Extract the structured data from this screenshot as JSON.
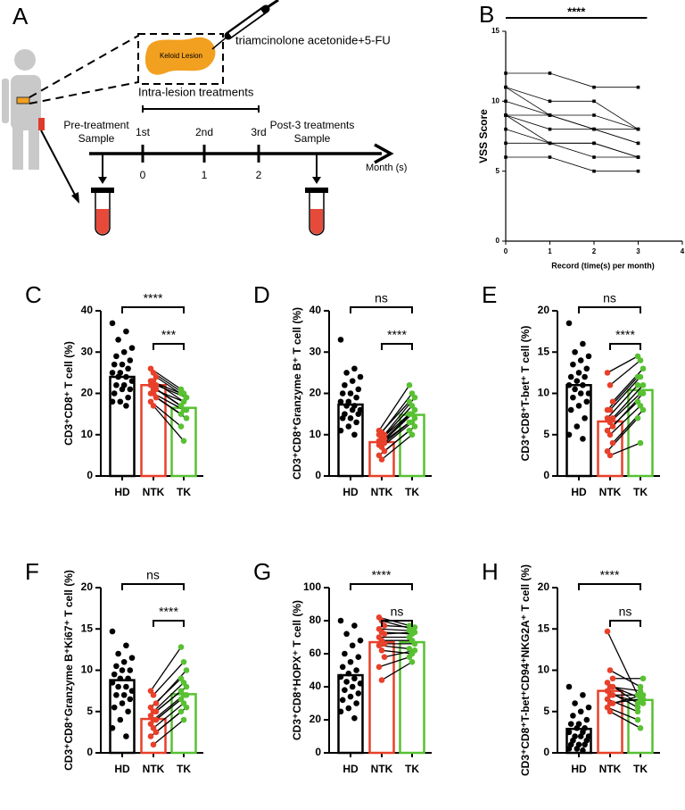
{
  "diagram": {
    "panel": "A",
    "drug": "triamcinolone acetonide+5-FU",
    "lesion": "Keloid Lesion",
    "treatments": "Intra-lesion treatments",
    "pre": [
      "Pre-treatment",
      "Sample"
    ],
    "post": [
      "Post-3 treatments",
      "Sample"
    ],
    "doses": [
      "1st",
      "2nd",
      "3rd"
    ],
    "months": [
      "0",
      "1",
      "2"
    ],
    "axis": "Month (s)"
  },
  "chart_data": [
    {
      "type": "line",
      "panel": "B",
      "xlabel": "Record (time(s) per month)",
      "ylabel": "VSS Score",
      "annotation": "****",
      "x": [
        0,
        1,
        2,
        3
      ],
      "xlim": [
        0,
        4
      ],
      "xticks": [
        0,
        1,
        2,
        3,
        4
      ],
      "ylim": [
        0,
        15
      ],
      "yticks": [
        0,
        5,
        10,
        15
      ],
      "color": "#000000",
      "series": [
        {
          "values": [
            12,
            12,
            11,
            11
          ]
        },
        {
          "values": [
            11,
            10,
            10,
            8
          ]
        },
        {
          "values": [
            10,
            9,
            8,
            7
          ]
        },
        {
          "values": [
            11,
            9,
            8,
            8
          ]
        },
        {
          "values": [
            9,
            9,
            9,
            8
          ]
        },
        {
          "values": [
            9,
            8,
            8,
            7
          ]
        },
        {
          "values": [
            8,
            7,
            7,
            6
          ]
        },
        {
          "values": [
            9,
            7,
            7,
            6
          ]
        },
        {
          "values": [
            7,
            7,
            6,
            6
          ]
        },
        {
          "values": [
            6,
            6,
            5,
            5
          ]
        }
      ]
    },
    {
      "type": "bar-scatter",
      "panel": "C",
      "ylabel": "CD3⁺CD8⁺ T cell (%)",
      "categories": [
        "HD",
        "NTK",
        "TK"
      ],
      "colors": [
        "#000000",
        "#e8402a",
        "#58c132"
      ],
      "values": [
        24,
        22,
        16.5
      ],
      "ylim": [
        0,
        40
      ],
      "yticks": [
        0,
        10,
        20,
        30,
        40
      ],
      "points": [
        [
          37,
          35,
          33,
          31,
          30,
          29,
          28,
          27,
          27,
          26,
          25,
          25,
          24,
          24,
          23,
          22,
          22,
          21,
          21,
          20,
          19,
          18,
          18,
          17
        ],
        [
          26,
          25,
          24,
          23,
          23,
          22,
          22,
          21,
          21,
          20,
          20,
          19,
          18,
          17
        ],
        [
          21,
          20,
          19,
          20,
          18,
          19,
          17,
          18,
          16,
          15,
          16,
          14,
          12,
          8.5
        ]
      ],
      "annotations": [
        {
          "label": "****",
          "between": [
            "HD",
            "TK"
          ]
        },
        {
          "label": "***",
          "between": [
            "NTK",
            "TK"
          ]
        }
      ]
    },
    {
      "type": "bar-scatter",
      "panel": "D",
      "ylabel": "CD3⁺CD8⁺Granzyme B⁺ T cell (%)",
      "categories": [
        "HD",
        "NTK",
        "TK"
      ],
      "colors": [
        "#000000",
        "#e8402a",
        "#58c132"
      ],
      "values": [
        17.3,
        8.2,
        14.8
      ],
      "ylim": [
        0,
        40
      ],
      "yticks": [
        0,
        10,
        20,
        30,
        40
      ],
      "points": [
        [
          33,
          26,
          25,
          24,
          23,
          22,
          21,
          20,
          20,
          19,
          18,
          18,
          17,
          17,
          16,
          16,
          15,
          15,
          14,
          14,
          13,
          12,
          11,
          10
        ],
        [
          11,
          10.5,
          10,
          10,
          9,
          9,
          8.5,
          8,
          8,
          7.5,
          7,
          6,
          5,
          4
        ],
        [
          22,
          20,
          19,
          18,
          17,
          16,
          15,
          15,
          14,
          13,
          13,
          12,
          11,
          10
        ]
      ],
      "annotations": [
        {
          "label": "ns",
          "between": [
            "HD",
            "TK"
          ]
        },
        {
          "label": "****",
          "between": [
            "NTK",
            "TK"
          ]
        }
      ]
    },
    {
      "type": "bar-scatter",
      "panel": "E",
      "ylabel": "CD3⁺CD8⁺T-bet⁺ T cell (%)",
      "categories": [
        "HD",
        "NTK",
        "TK"
      ],
      "colors": [
        "#000000",
        "#e8402a",
        "#58c132"
      ],
      "values": [
        11,
        6.6,
        10.4
      ],
      "ylim": [
        0,
        20
      ],
      "yticks": [
        0,
        5,
        10,
        15,
        20
      ],
      "points": [
        [
          18.5,
          16,
          15,
          14.5,
          14,
          13.5,
          13,
          12.5,
          12,
          12,
          11.5,
          11,
          11,
          10.5,
          10,
          10,
          9.5,
          9,
          8.5,
          8,
          7,
          6,
          5,
          4.5
        ],
        [
          12.5,
          11,
          9,
          8,
          8,
          7,
          7,
          6.5,
          6,
          5.5,
          5,
          4,
          3,
          2.5
        ],
        [
          14.5,
          14,
          13,
          12,
          12,
          11,
          11,
          10,
          10,
          9,
          8.5,
          8,
          7,
          4
        ]
      ],
      "annotations": [
        {
          "label": "ns",
          "between": [
            "HD",
            "TK"
          ]
        },
        {
          "label": "****",
          "between": [
            "NTK",
            "TK"
          ]
        }
      ]
    },
    {
      "type": "bar-scatter",
      "panel": "F",
      "ylabel": "CD3⁺CD8⁺Granzyme B⁺Ki67⁺ T cell (%)",
      "categories": [
        "HD",
        "NTK",
        "TK"
      ],
      "colors": [
        "#000000",
        "#e8402a",
        "#58c132"
      ],
      "values": [
        8.8,
        4.1,
        7.1
      ],
      "ylim": [
        0,
        20
      ],
      "yticks": [
        0,
        5,
        10,
        15,
        20
      ],
      "points": [
        [
          14.7,
          13,
          12,
          11.5,
          11,
          10.5,
          10,
          10,
          9.5,
          9,
          9,
          8.5,
          8,
          8,
          7.5,
          7,
          7,
          6.5,
          6,
          5.5,
          5,
          4,
          3,
          2
        ],
        [
          7.5,
          7,
          6,
          5.5,
          5,
          5,
          4.5,
          4,
          4,
          3.5,
          3,
          2.5,
          2,
          1
        ],
        [
          12.8,
          11,
          10,
          9,
          8.5,
          8,
          7.5,
          7,
          7,
          6.5,
          6,
          5.5,
          5,
          4
        ]
      ],
      "annotations": [
        {
          "label": "ns",
          "between": [
            "HD",
            "TK"
          ]
        },
        {
          "label": "****",
          "between": [
            "NTK",
            "TK"
          ]
        }
      ]
    },
    {
      "type": "bar-scatter",
      "panel": "G",
      "ylabel": "CD3⁺CD8⁺HOPX⁺ T cell (%)",
      "categories": [
        "HD",
        "NTK",
        "TK"
      ],
      "colors": [
        "#000000",
        "#e8402a",
        "#58c132"
      ],
      "values": [
        47,
        67,
        67
      ],
      "ylim": [
        0,
        100
      ],
      "yticks": [
        0,
        20,
        40,
        60,
        80,
        100
      ],
      "points": [
        [
          80,
          77,
          72,
          68,
          65,
          60,
          58,
          55,
          52,
          50,
          48,
          46,
          45,
          43,
          42,
          40,
          38,
          36,
          34,
          32,
          30,
          27,
          25,
          21
        ],
        [
          82,
          80,
          77,
          75,
          73,
          72,
          70,
          68,
          66,
          65,
          62,
          58,
          52,
          44
        ],
        [
          77,
          75,
          76,
          74,
          72,
          73,
          70,
          68,
          66,
          63,
          60,
          62,
          58,
          55
        ]
      ],
      "annotations": [
        {
          "label": "****",
          "between": [
            "HD",
            "TK"
          ]
        },
        {
          "label": "ns",
          "between": [
            "NTK",
            "TK"
          ]
        }
      ]
    },
    {
      "type": "bar-scatter",
      "panel": "H",
      "ylabel": "CD3⁺CD8⁺T-bet⁺CD94⁺NKG2A⁺ T cell (%)",
      "categories": [
        "HD",
        "NTK",
        "TK"
      ],
      "colors": [
        "#000000",
        "#e8402a",
        "#58c132"
      ],
      "values": [
        2.9,
        7.5,
        6.4
      ],
      "ylim": [
        0,
        20
      ],
      "yticks": [
        0,
        5,
        10,
        15,
        20
      ],
      "points": [
        [
          8,
          7,
          6,
          5.5,
          5,
          4.5,
          4,
          3.5,
          3.5,
          3,
          3,
          2.5,
          2.5,
          2,
          2,
          2,
          1.5,
          1.5,
          1,
          1,
          1,
          0.5,
          0.5,
          0.3
        ],
        [
          14.7,
          10,
          9,
          8.5,
          8,
          8,
          7.5,
          7,
          7,
          6.5,
          6,
          6,
          5.5,
          5
        ],
        [
          7,
          8,
          9,
          6,
          7.5,
          6.5,
          5.5,
          7,
          6,
          5,
          6.5,
          7,
          4,
          3
        ]
      ],
      "annotations": [
        {
          "label": "****",
          "between": [
            "HD",
            "TK"
          ]
        },
        {
          "label": "ns",
          "between": [
            "NTK",
            "TK"
          ]
        }
      ]
    }
  ]
}
